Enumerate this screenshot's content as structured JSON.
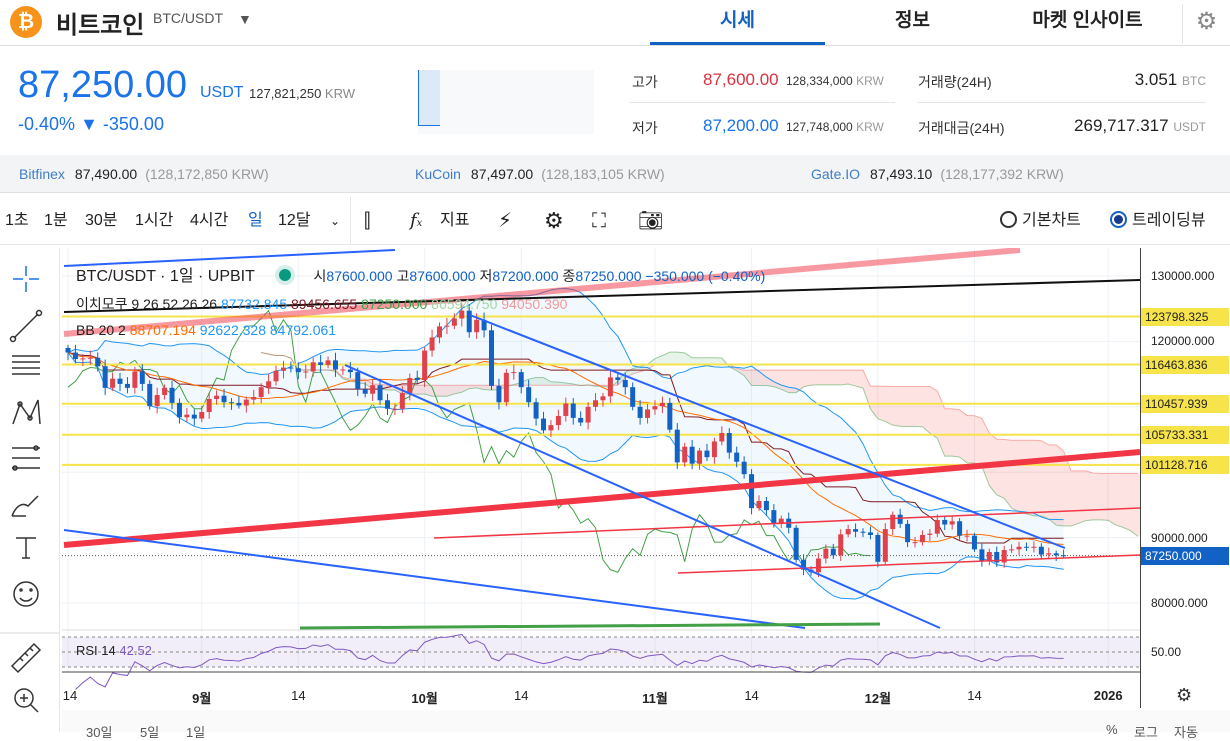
{
  "header": {
    "coin_name": "비트코인",
    "pair": "BTC/USDT",
    "tabs": [
      {
        "label": "시세",
        "active": true
      },
      {
        "label": "정보"
      },
      {
        "label": "마켓 인사이트"
      }
    ],
    "logo": "₿"
  },
  "price": {
    "last": "87,250.00",
    "unit": "USDT",
    "krw": "127,821,250",
    "krw_unit": "KRW",
    "change_pct": "-0.40%",
    "change_arrow": "▼",
    "change_abs": "-350.00"
  },
  "stats": {
    "high_label": "고가",
    "high": "87,600.00",
    "high_krw": "128,334,000",
    "low_label": "저가",
    "low": "87,200.00",
    "low_krw": "127,748,000",
    "krw_unit": "KRW",
    "vol_label": "거래량(24H)",
    "vol": "3.051",
    "vol_unit": "BTC",
    "amt_label": "거래대금(24H)",
    "amt": "269,717.317",
    "amt_unit": "USDT"
  },
  "exchanges": [
    {
      "name": "Bitfinex",
      "price": "87,490.00",
      "krw": "(128,172,850 KRW)"
    },
    {
      "name": "KuCoin",
      "price": "87,497.00",
      "krw": "(128,183,105 KRW)"
    },
    {
      "name": "Gate.IO",
      "price": "87,493.10",
      "krw": "(128,177,392 KRW)"
    }
  ],
  "toolbar": {
    "intervals": [
      "1초",
      "1분",
      "30분",
      "1시간",
      "4시간",
      "일",
      "12달"
    ],
    "active_interval": "일",
    "indicator_label": "지표",
    "chart_basic": "기본차트",
    "chart_tv": "트레이딩뷰",
    "selected_chart": "트레이딩뷰"
  },
  "legend": {
    "title": "BTC/USDT · 1일 · UPBIT",
    "o_label": "시",
    "o": "87600.000",
    "h_label": "고",
    "h": "87600.000",
    "l_label": "저",
    "l": "87200.000",
    "c_label": "종",
    "c": "87250.000",
    "chg": "−350.000 (−0.40%)",
    "ichimoku_label": "이치모쿠 9 26 52 26 26",
    "ichimoku_vals": [
      "87732.845",
      "89456.655",
      "87250.000",
      "86594.750",
      "94050.390"
    ],
    "bb_label": "BB 20 2",
    "bb_vals": [
      "88707.194",
      "92622.328",
      "84792.061"
    ],
    "rsi_label": "RSI 14",
    "rsi_val": "42.52"
  },
  "colors": {
    "up": "#e0424c",
    "down": "#1261c4",
    "accent": "#1261c4",
    "bb_mid": "#ff6d00",
    "bb_band": "#2196f3",
    "kijun": "#801922",
    "lagging": "#43a047",
    "level": "#f7e34a",
    "trend_red": "#f23645"
  },
  "chart_data": {
    "type": "candlestick",
    "start_date": "2025-08-14",
    "end_date": "2025-12-26",
    "ylim": [
      77000,
      135000
    ],
    "price_ticks": [
      "130000.000",
      "120000.000",
      "90000.000",
      "80000.000"
    ],
    "level_tags": [
      "123798.325",
      "116463.836",
      "110457.939",
      "105733.331",
      "101128.716"
    ],
    "last_tag": "87250.000",
    "rsi_tick": "50.00",
    "time_labels": [
      {
        "label": "14",
        "date": "2025-08-14"
      },
      {
        "label": "9월",
        "date": "2025-09-01"
      },
      {
        "label": "14",
        "date": "2025-09-14"
      },
      {
        "label": "10월",
        "date": "2025-10-01"
      },
      {
        "label": "14",
        "date": "2025-10-14"
      },
      {
        "label": "11월",
        "date": "2025-11-01"
      },
      {
        "label": "14",
        "date": "2025-11-14"
      },
      {
        "label": "12월",
        "date": "2025-12-01"
      },
      {
        "label": "14",
        "date": "2025-12-14"
      },
      {
        "label": "2026",
        "date": "2026-01-01"
      }
    ],
    "first_open": 119000,
    "closes": [
      118300,
      117300,
      117400,
      117500,
      116200,
      112900,
      114300,
      113500,
      112900,
      115400,
      113500,
      110100,
      111800,
      112900,
      110600,
      108400,
      108800,
      108200,
      109200,
      111200,
      111700,
      110700,
      110600,
      110200,
      111100,
      111500,
      113000,
      113900,
      115500,
      116000,
      115900,
      115300,
      115400,
      116800,
      116400,
      117100,
      115700,
      115700,
      115300,
      112700,
      112000,
      113300,
      111000,
      109700,
      109700,
      112100,
      114400,
      114100,
      118600,
      120600,
      122300,
      122400,
      123500,
      124700,
      121400,
      123300,
      121700,
      113200,
      110700,
      115200,
      115300,
      113000,
      110700,
      108200,
      106400,
      107200,
      108600,
      110500,
      108300,
      107600,
      110000,
      111000,
      111600,
      114500,
      114100,
      113000,
      110000,
      108300,
      109600,
      110100,
      110600,
      106500,
      101500,
      103900,
      101300,
      103300,
      102300,
      104700,
      106000,
      103000,
      101600,
      99700,
      94500,
      95600,
      94200,
      92200,
      92900,
      91500,
      86600,
      85100,
      84700,
      86800,
      88300,
      87300,
      90500,
      91300,
      90900,
      90800,
      90400,
      86300,
      91300,
      93500,
      92100,
      89300,
      89300,
      90400,
      90600,
      92700,
      92000,
      92500,
      90300,
      90300,
      88200,
      86400,
      87800,
      86200,
      88100,
      88200,
      88600,
      88500,
      88600,
      87400,
      87600,
      87300,
      87250
    ]
  },
  "bottom": {
    "ranges": [
      "30일",
      "5일",
      "1일"
    ],
    "right": [
      "%",
      "로그",
      "자동"
    ]
  }
}
